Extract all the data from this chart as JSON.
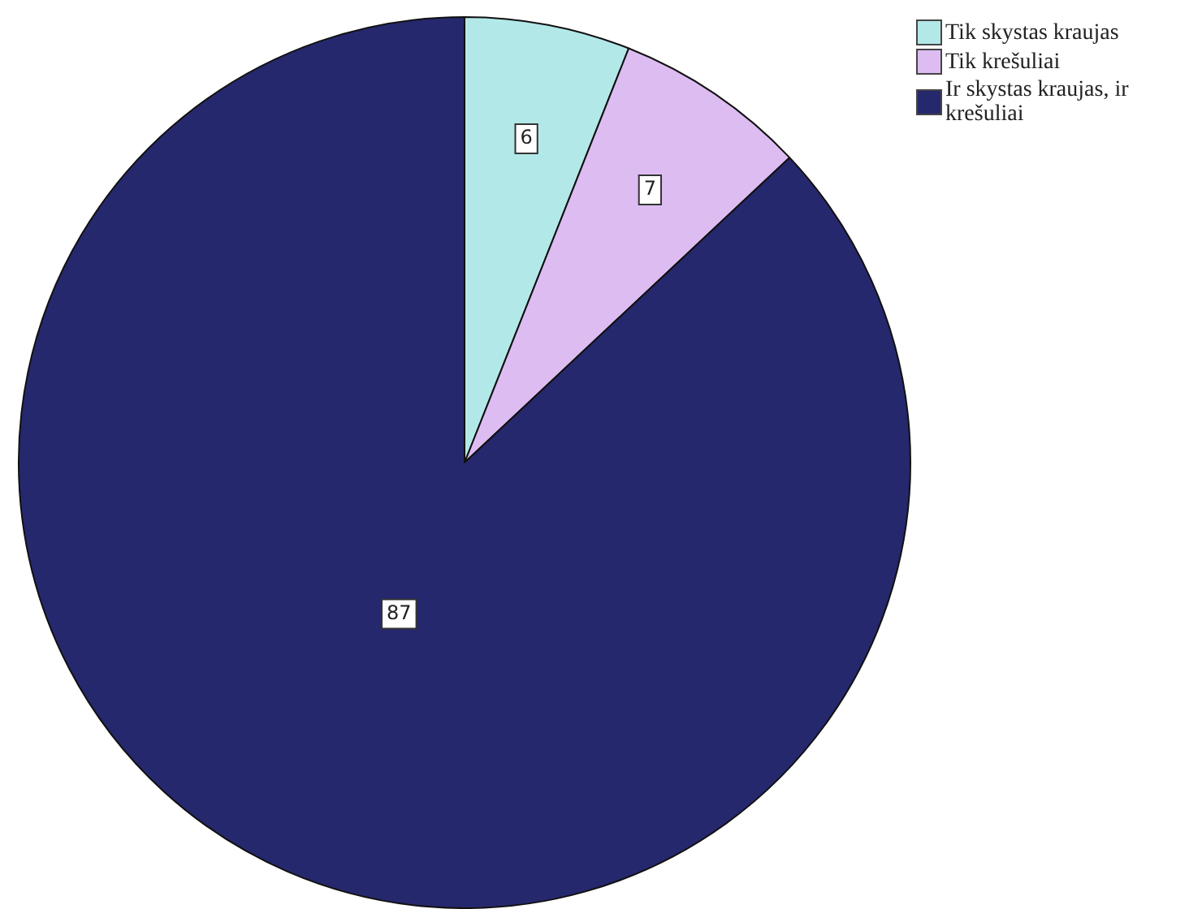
{
  "chart_data": {
    "type": "pie",
    "categories": [
      "Tik skystas kraujas",
      "Tik krešuliai",
      "Ir skystas kraujas, ir krešuliai"
    ],
    "values": [
      6,
      7,
      87
    ],
    "colors": [
      "#b3e8e8",
      "#ddbcf2",
      "#26286e"
    ],
    "data_labels": true,
    "legend": "top right"
  }
}
